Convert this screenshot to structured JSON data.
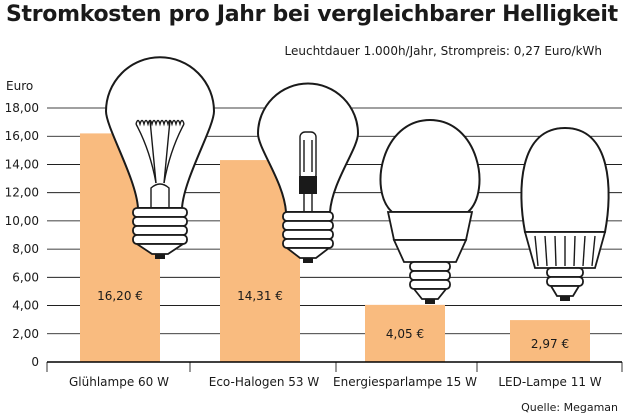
{
  "title": "Stromkosten pro Jahr bei vergleichbarer Helligkeit",
  "subtitle": "Leuchtdauer 1.000h/Jahr, Strompreis: 0,27 Euro/kWh",
  "source": "Quelle: Megaman",
  "colors": {
    "bar": "#f9bb7f",
    "text": "#1a1a1a",
    "grid": "#000000"
  },
  "chart_data": {
    "type": "bar",
    "title": "Stromkosten pro Jahr bei vergleichbarer Helligkeit",
    "ylabel": "Euro",
    "xlabel": "",
    "ylim": [
      0,
      18
    ],
    "yticks": [
      0,
      2,
      4,
      6,
      8,
      10,
      12,
      14,
      16,
      18
    ],
    "ytick_labels": [
      "0",
      "2,00",
      "4,00",
      "6,00",
      "8,00",
      "10,00",
      "12,00",
      "14,00",
      "16,00",
      "18,00"
    ],
    "grid": true,
    "categories": [
      "Glühlampe 60 W",
      "Eco-Halogen 53 W",
      "Energiesparlampe 15 W",
      "LED-Lampe 11 W"
    ],
    "values": [
      16.2,
      14.31,
      4.05,
      2.97
    ],
    "data_labels": [
      "16,20 €",
      "14,31 €",
      "4,05 €",
      "2,97 €"
    ],
    "icons": [
      "incandescent-bulb-icon",
      "halogen-bulb-icon",
      "energy-saving-bulb-icon",
      "led-bulb-icon"
    ]
  }
}
